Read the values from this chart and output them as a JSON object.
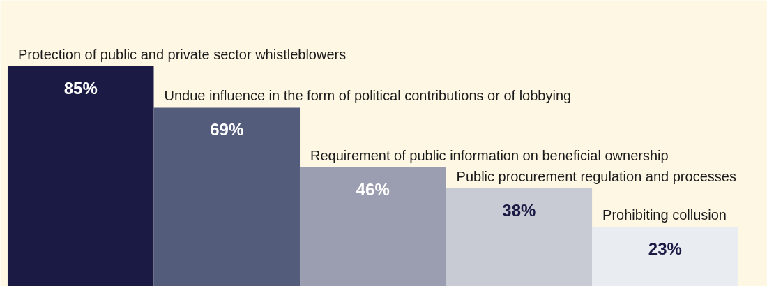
{
  "chart_data": {
    "type": "bar",
    "categories": [
      null,
      null,
      null,
      null,
      null
    ],
    "values": [
      85,
      69,
      46,
      38,
      23
    ],
    "colors": [
      "#1a1a45",
      "#545c7c",
      "#9a9eb0",
      "#c8cbd3",
      "#e9ecf0"
    ],
    "value_labels": [
      "85%",
      "69%",
      "46%",
      "38%",
      "23%"
    ],
    "annotations": [
      "Protection of public and private sector whistleblowers",
      "Undue influence in the form of political contributions or of lobbying",
      "Requirement of public information on beneficial ownership",
      "Public procurement regulation and processes",
      "Prohibiting collusion"
    ]
  }
}
